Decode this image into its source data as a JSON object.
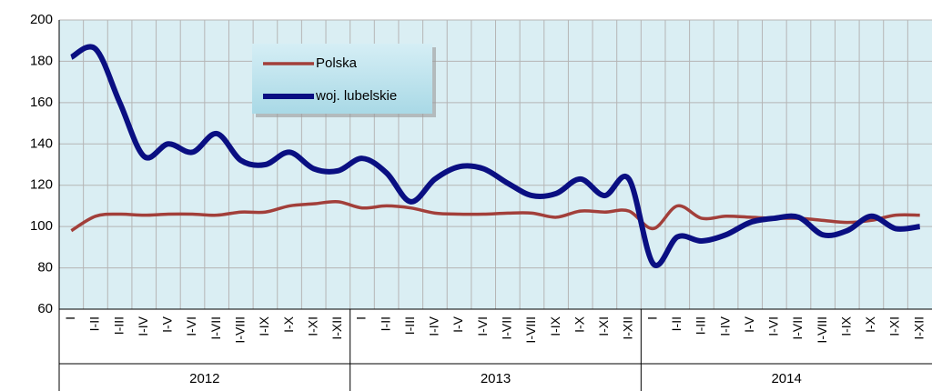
{
  "chart_data": {
    "type": "line",
    "categories": [
      "I",
      "I-II",
      "I-III",
      "I-IV",
      "I-V",
      "I-VI",
      "I-VII",
      "I-VIII",
      "I-IX",
      "I-X",
      "I-XI",
      "I-XII",
      "I",
      "I-II",
      "I-III",
      "I-IV",
      "I-V",
      "I-VI",
      "I-VII",
      "I-VIII",
      "I-IX",
      "I-X",
      "I-XI",
      "I-XII",
      "I",
      "I-II",
      "I-III",
      "I-IV",
      "I-V",
      "I-VI",
      "I-VII",
      "I-VIII",
      "I-IX",
      "I-X",
      "I-XI",
      "I-XII"
    ],
    "groups": [
      "2012",
      "2013",
      "2014"
    ],
    "series": [
      {
        "name": "Polska",
        "color": "#a23f3a",
        "values": [
          98,
          105,
          106,
          105.5,
          106,
          106,
          105.5,
          107,
          107,
          110,
          111,
          112,
          109,
          110,
          109,
          106.5,
          106,
          106,
          106.5,
          106.5,
          104.5,
          107.5,
          107,
          107.5,
          99,
          110,
          104,
          105,
          104.5,
          104,
          104,
          103,
          102,
          103,
          105.5,
          105.5
        ]
      },
      {
        "name": "woj. lubelskie",
        "color": "#0a0f82",
        "values": [
          182,
          186,
          160,
          134,
          140,
          136,
          145,
          132,
          130,
          136,
          128,
          127,
          133,
          126,
          112,
          123,
          129,
          128,
          121,
          115,
          116,
          123,
          115,
          123,
          82,
          95,
          93,
          96,
          102,
          104,
          104.5,
          96,
          98,
          105,
          99,
          100
        ]
      }
    ],
    "ylim": [
      60,
      200
    ],
    "yticks": [
      60,
      80,
      100,
      120,
      140,
      160,
      180,
      200
    ],
    "grid": true,
    "legend": "top-left"
  }
}
